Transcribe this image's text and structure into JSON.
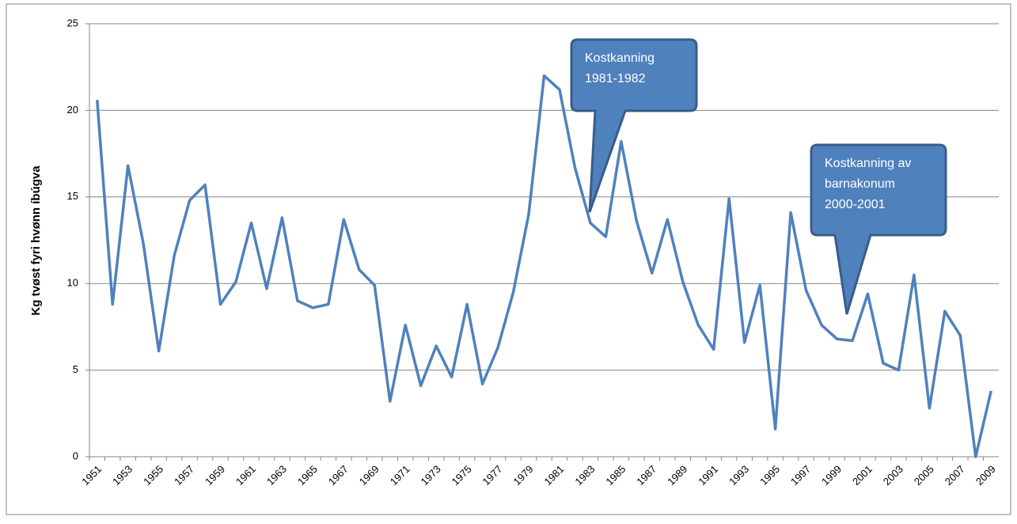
{
  "chart_data": {
    "type": "line",
    "y_label": "Kg tvøst  fyri hvønn íbúgva",
    "categories": [
      "1951",
      null,
      "1953",
      null,
      "1955",
      null,
      "1957",
      null,
      "1959",
      null,
      "1961",
      null,
      "1963",
      null,
      "1965",
      null,
      "1967",
      null,
      "1969",
      null,
      "1971",
      null,
      "1973",
      null,
      "1975",
      null,
      "1977",
      null,
      "1979",
      null,
      "1981",
      null,
      "1983",
      null,
      "1985",
      null,
      "1987",
      null,
      "1989",
      null,
      "1991",
      null,
      "1993",
      null,
      "1995",
      null,
      "1997",
      null,
      "1999",
      null,
      "2001",
      null,
      "2003",
      null,
      "2005",
      null,
      "2007",
      null,
      "2009"
    ],
    "values": [
      20.6,
      8.8,
      16.8,
      12.3,
      6.1,
      11.6,
      14.8,
      15.7,
      8.8,
      10.1,
      13.5,
      9.7,
      13.8,
      9.0,
      8.6,
      8.8,
      13.7,
      10.8,
      9.9,
      3.2,
      7.6,
      4.1,
      6.4,
      4.6,
      8.8,
      4.2,
      6.3,
      9.5,
      14.0,
      22.0,
      21.2,
      16.7,
      13.5,
      12.7,
      18.2,
      13.6,
      10.6,
      13.7,
      10.1,
      7.6,
      6.2,
      14.9,
      6.6,
      9.9,
      1.6,
      14.1,
      9.6,
      7.6,
      6.8,
      6.7,
      9.4,
      5.4,
      5.0,
      10.5,
      2.8,
      8.4,
      7.0,
      0.0,
      3.8
    ],
    "color": "#4f81bd",
    "ylim": [
      0,
      25
    ],
    "yticks": [
      0,
      5,
      10,
      15,
      20,
      25
    ],
    "grid": true,
    "annotations": [
      [
        "Kostkanning",
        "1981-1982"
      ],
      [
        "Kostkanning av",
        "barnakonum",
        "2000-2001"
      ]
    ]
  }
}
